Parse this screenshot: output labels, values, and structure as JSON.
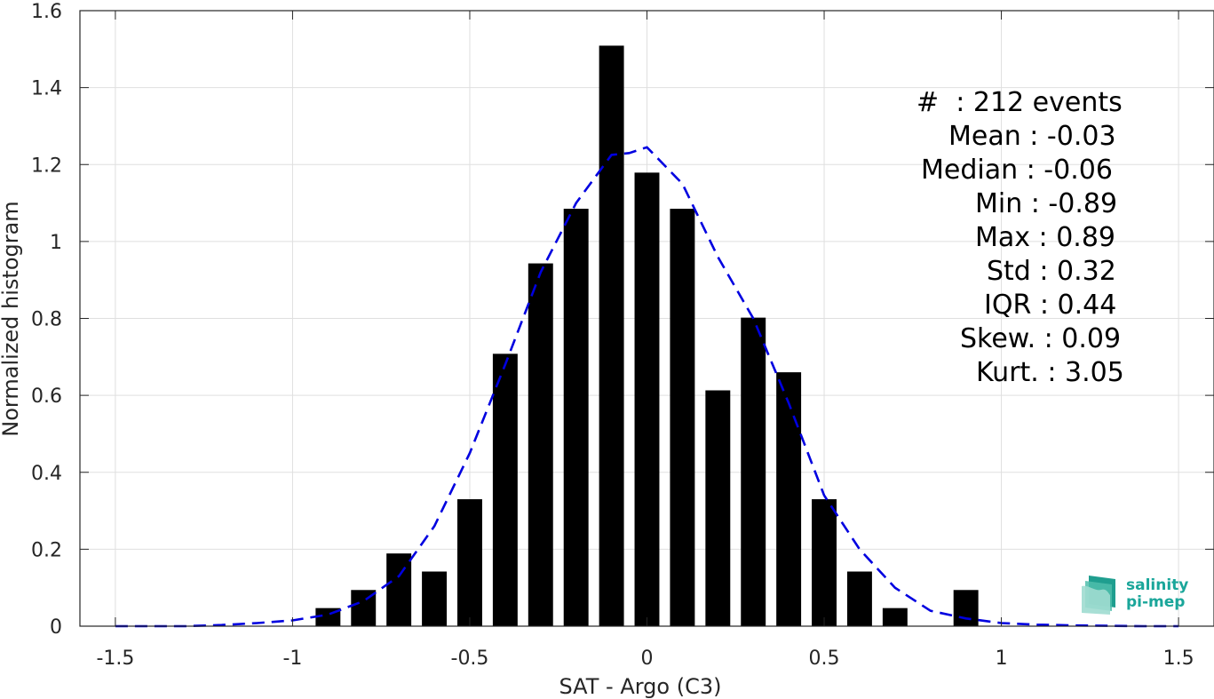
{
  "chart_data": {
    "type": "bar",
    "title": "",
    "xlabel": "SAT - Argo (C3)",
    "ylabel": "Normalized histogram",
    "xlim": [
      -1.6,
      1.6
    ],
    "ylim": [
      0,
      1.6
    ],
    "xticks": [
      -1.5,
      -1,
      -0.5,
      0,
      0.5,
      1,
      1.5
    ],
    "xtick_labels": [
      "-1.5",
      "-1",
      "-0.5",
      "0",
      "0.5",
      "1",
      "1.5"
    ],
    "yticks": [
      0,
      0.2,
      0.4,
      0.6,
      0.8,
      1,
      1.2,
      1.4,
      1.6
    ],
    "ytick_labels": [
      "0",
      "0.2",
      "0.4",
      "0.6",
      "0.8",
      "1",
      "1.2",
      "1.4",
      "1.6"
    ],
    "grid": true,
    "bar_width": 0.07,
    "bars": {
      "x": [
        -0.9,
        -0.8,
        -0.7,
        -0.6,
        -0.5,
        -0.4,
        -0.3,
        -0.2,
        -0.1,
        0.0,
        0.1,
        0.2,
        0.3,
        0.4,
        0.5,
        0.6,
        0.7,
        0.9
      ],
      "y": [
        0.047,
        0.094,
        0.189,
        0.142,
        0.33,
        0.708,
        0.943,
        1.085,
        1.509,
        1.179,
        1.085,
        0.613,
        0.802,
        0.66,
        0.33,
        0.142,
        0.047,
        0.094
      ],
      "color": "#000000"
    },
    "fit_curve": {
      "style": "dashed",
      "color": "#0000e0",
      "x": [
        -1.5,
        -1.4,
        -1.3,
        -1.2,
        -1.1,
        -1.0,
        -0.9,
        -0.8,
        -0.7,
        -0.6,
        -0.5,
        -0.4,
        -0.3,
        -0.2,
        -0.1,
        -0.05,
        0.0,
        0.1,
        0.2,
        0.3,
        0.4,
        0.5,
        0.6,
        0.7,
        0.8,
        0.9,
        1.0,
        1.1,
        1.2,
        1.3,
        1.4,
        1.5
      ],
      "y": [
        0.0,
        0.0,
        0.0,
        0.003,
        0.008,
        0.015,
        0.03,
        0.065,
        0.13,
        0.26,
        0.45,
        0.68,
        0.92,
        1.1,
        1.225,
        1.23,
        1.245,
        1.15,
        0.96,
        0.8,
        0.58,
        0.34,
        0.2,
        0.1,
        0.04,
        0.02,
        0.008,
        0.004,
        0.002,
        0.001,
        0.0,
        0.0
      ]
    }
  },
  "stats": {
    "lines": [
      "#  : 212 events",
      "Mean : -0.03",
      "Median : -0.06",
      "Min : -0.89",
      "Max : 0.89",
      "Std : 0.32",
      "IQR : 0.44",
      "Skew. : 0.09",
      "Kurt. : 3.05"
    ]
  },
  "logo": {
    "line1": "salinity",
    "line2": "pi-mep",
    "color": "#1aa69a"
  }
}
